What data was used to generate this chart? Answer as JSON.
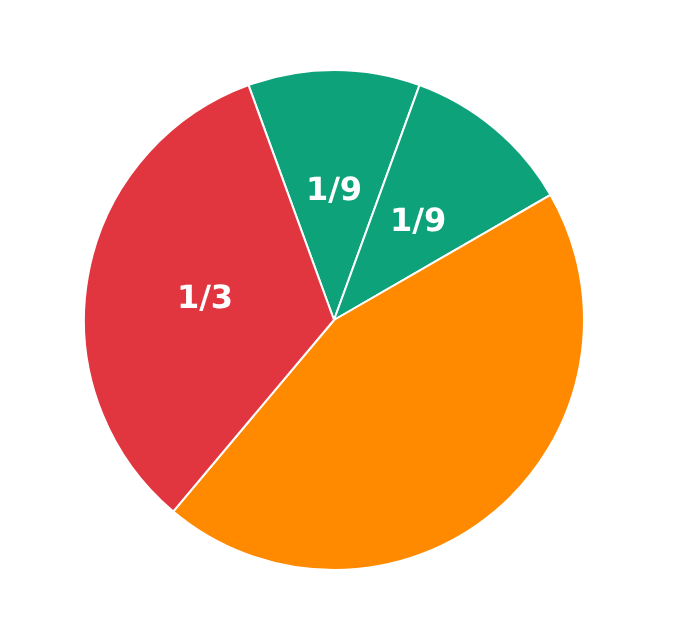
{
  "chart_data": {
    "type": "pie",
    "categories": [
      null,
      null,
      null,
      null
    ],
    "values": [
      0.1111,
      0.1111,
      0.4445,
      0.3333
    ],
    "colors": [
      "#0ea27a",
      "#0ea27a",
      "#ff8a00",
      "#e1353f"
    ],
    "value_labels": [
      "1/9",
      "1/9",
      null,
      "1/3"
    ]
  }
}
